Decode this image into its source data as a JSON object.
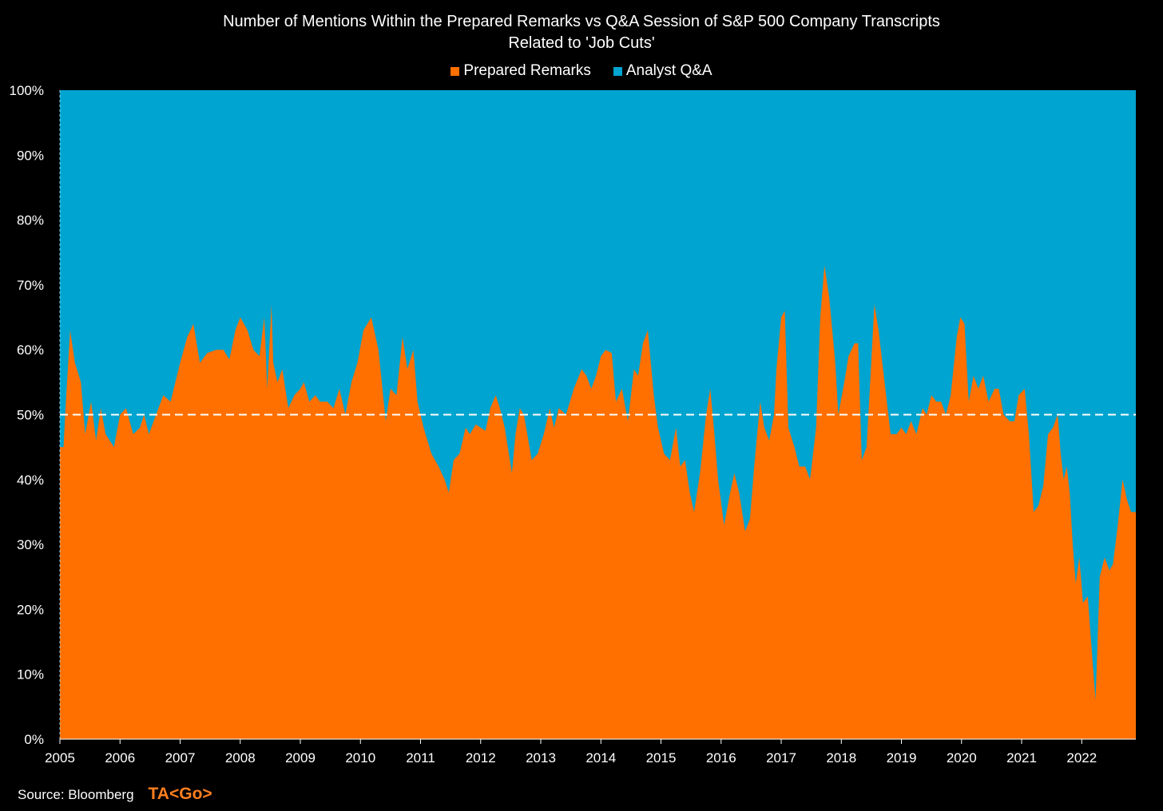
{
  "chart_data": {
    "type": "area",
    "stacked": "percent",
    "title_lines": [
      "Number of Mentions Within the Prepared Remarks vs Q&A Session of S&P 500 Company Transcripts",
      "Related to 'Job Cuts'"
    ],
    "legend": {
      "placement": "top-center"
    },
    "series": [
      {
        "name": "Prepared Remarks",
        "color": "#ff7000"
      },
      {
        "name": "Analyst Q&A",
        "color": "#00a4d0"
      }
    ],
    "x_ticks": [
      "2005",
      "2006",
      "2007",
      "2008",
      "2009",
      "2010",
      "2011",
      "2012",
      "2013",
      "2014",
      "2015",
      "2016",
      "2017",
      "2018",
      "2019",
      "2020",
      "2021",
      "2022"
    ],
    "y_ticks": [
      "0%",
      "10%",
      "20%",
      "30%",
      "40%",
      "50%",
      "60%",
      "70%",
      "80%",
      "90%",
      "100%"
    ],
    "xlim": [
      2005,
      2022.9
    ],
    "ylim": [
      0,
      100
    ],
    "reference_line": {
      "y": 50,
      "style": "dashed",
      "color": "#ffffff"
    },
    "prepared_remarks_pct": [
      [
        2005.0,
        45
      ],
      [
        2005.06,
        45
      ],
      [
        2005.1,
        52
      ],
      [
        2005.17,
        63
      ],
      [
        2005.25,
        58
      ],
      [
        2005.35,
        55
      ],
      [
        2005.42,
        47
      ],
      [
        2005.52,
        52
      ],
      [
        2005.6,
        46
      ],
      [
        2005.68,
        51
      ],
      [
        2005.76,
        47
      ],
      [
        2005.9,
        45
      ],
      [
        2006.0,
        50
      ],
      [
        2006.1,
        51
      ],
      [
        2006.22,
        47
      ],
      [
        2006.33,
        48
      ],
      [
        2006.4,
        50
      ],
      [
        2006.48,
        47
      ],
      [
        2006.6,
        50
      ],
      [
        2006.72,
        53
      ],
      [
        2006.84,
        52
      ],
      [
        2007.0,
        58
      ],
      [
        2007.12,
        62
      ],
      [
        2007.22,
        64
      ],
      [
        2007.33,
        58
      ],
      [
        2007.45,
        59.5
      ],
      [
        2007.6,
        60
      ],
      [
        2007.72,
        60
      ],
      [
        2007.82,
        58.5
      ],
      [
        2007.92,
        63
      ],
      [
        2008.0,
        65
      ],
      [
        2008.12,
        63
      ],
      [
        2008.22,
        60
      ],
      [
        2008.32,
        59
      ],
      [
        2008.4,
        65
      ],
      [
        2008.45,
        54
      ],
      [
        2008.52,
        67
      ],
      [
        2008.55,
        58
      ],
      [
        2008.62,
        55
      ],
      [
        2008.7,
        57
      ],
      [
        2008.8,
        51
      ],
      [
        2008.9,
        53
      ],
      [
        2009.0,
        54
      ],
      [
        2009.06,
        55
      ],
      [
        2009.15,
        52
      ],
      [
        2009.25,
        53
      ],
      [
        2009.33,
        52
      ],
      [
        2009.45,
        52
      ],
      [
        2009.55,
        51
      ],
      [
        2009.65,
        54
      ],
      [
        2009.75,
        50
      ],
      [
        2009.85,
        55
      ],
      [
        2009.95,
        58
      ],
      [
        2010.05,
        63
      ],
      [
        2010.18,
        65
      ],
      [
        2010.3,
        60
      ],
      [
        2010.42,
        49
      ],
      [
        2010.5,
        54
      ],
      [
        2010.6,
        53
      ],
      [
        2010.7,
        62
      ],
      [
        2010.78,
        57
      ],
      [
        2010.88,
        60
      ],
      [
        2010.95,
        52
      ],
      [
        2011.05,
        48
      ],
      [
        2011.18,
        44
      ],
      [
        2011.3,
        42
      ],
      [
        2011.4,
        40
      ],
      [
        2011.47,
        38
      ],
      [
        2011.55,
        43
      ],
      [
        2011.65,
        44
      ],
      [
        2011.75,
        48
      ],
      [
        2011.82,
        47
      ],
      [
        2011.92,
        48.5
      ],
      [
        2012.0,
        48
      ],
      [
        2012.08,
        47.5
      ],
      [
        2012.16,
        51
      ],
      [
        2012.25,
        53
      ],
      [
        2012.32,
        51
      ],
      [
        2012.4,
        48
      ],
      [
        2012.52,
        41
      ],
      [
        2012.58,
        47
      ],
      [
        2012.65,
        51
      ],
      [
        2012.72,
        50
      ],
      [
        2012.85,
        43
      ],
      [
        2012.95,
        44
      ],
      [
        2013.05,
        47
      ],
      [
        2013.15,
        51
      ],
      [
        2013.22,
        48
      ],
      [
        2013.3,
        51
      ],
      [
        2013.42,
        50
      ],
      [
        2013.55,
        54
      ],
      [
        2013.68,
        57
      ],
      [
        2013.76,
        56
      ],
      [
        2013.84,
        54
      ],
      [
        2013.92,
        56
      ],
      [
        2014.0,
        59
      ],
      [
        2014.08,
        60
      ],
      [
        2014.18,
        59.5
      ],
      [
        2014.25,
        52
      ],
      [
        2014.35,
        54
      ],
      [
        2014.45,
        49
      ],
      [
        2014.55,
        57
      ],
      [
        2014.62,
        56
      ],
      [
        2014.7,
        61
      ],
      [
        2014.78,
        63
      ],
      [
        2014.88,
        53
      ],
      [
        2014.95,
        48
      ],
      [
        2015.05,
        44
      ],
      [
        2015.15,
        43
      ],
      [
        2015.25,
        48
      ],
      [
        2015.32,
        42
      ],
      [
        2015.4,
        43
      ],
      [
        2015.48,
        38
      ],
      [
        2015.55,
        35
      ],
      [
        2015.65,
        41
      ],
      [
        2015.75,
        50
      ],
      [
        2015.82,
        54
      ],
      [
        2015.88,
        48
      ],
      [
        2015.95,
        40
      ],
      [
        2016.05,
        33
      ],
      [
        2016.15,
        38
      ],
      [
        2016.22,
        41
      ],
      [
        2016.3,
        38
      ],
      [
        2016.4,
        32
      ],
      [
        2016.48,
        34
      ],
      [
        2016.55,
        42
      ],
      [
        2016.65,
        52
      ],
      [
        2016.72,
        48
      ],
      [
        2016.8,
        46
      ],
      [
        2016.88,
        50
      ],
      [
        2016.92,
        57
      ],
      [
        2017.0,
        65
      ],
      [
        2017.06,
        66
      ],
      [
        2017.12,
        48
      ],
      [
        2017.22,
        45
      ],
      [
        2017.3,
        42
      ],
      [
        2017.4,
        42
      ],
      [
        2017.48,
        40
      ],
      [
        2017.58,
        48
      ],
      [
        2017.65,
        65
      ],
      [
        2017.72,
        73
      ],
      [
        2017.8,
        68
      ],
      [
        2017.9,
        58
      ],
      [
        2017.95,
        50
      ],
      [
        2018.05,
        55
      ],
      [
        2018.12,
        59
      ],
      [
        2018.22,
        61
      ],
      [
        2018.28,
        61
      ],
      [
        2018.34,
        43
      ],
      [
        2018.42,
        45
      ],
      [
        2018.48,
        55
      ],
      [
        2018.55,
        67
      ],
      [
        2018.62,
        63
      ],
      [
        2018.72,
        55
      ],
      [
        2018.82,
        47
      ],
      [
        2018.92,
        47
      ],
      [
        2019.0,
        48
      ],
      [
        2019.08,
        47
      ],
      [
        2019.16,
        49
      ],
      [
        2019.25,
        47
      ],
      [
        2019.35,
        51
      ],
      [
        2019.42,
        50
      ],
      [
        2019.5,
        53
      ],
      [
        2019.58,
        52
      ],
      [
        2019.66,
        52
      ],
      [
        2019.74,
        50
      ],
      [
        2019.82,
        53
      ],
      [
        2019.92,
        62
      ],
      [
        2019.98,
        65
      ],
      [
        2020.05,
        64
      ],
      [
        2020.12,
        52
      ],
      [
        2020.2,
        56
      ],
      [
        2020.28,
        54
      ],
      [
        2020.36,
        56
      ],
      [
        2020.45,
        52
      ],
      [
        2020.55,
        54
      ],
      [
        2020.62,
        54
      ],
      [
        2020.7,
        50
      ],
      [
        2020.8,
        49
      ],
      [
        2020.88,
        49
      ],
      [
        2020.95,
        53
      ],
      [
        2021.05,
        54
      ],
      [
        2021.12,
        47
      ],
      [
        2021.2,
        35
      ],
      [
        2021.28,
        36
      ],
      [
        2021.36,
        39
      ],
      [
        2021.44,
        47
      ],
      [
        2021.52,
        48
      ],
      [
        2021.6,
        50
      ],
      [
        2021.65,
        44
      ],
      [
        2021.7,
        40
      ],
      [
        2021.75,
        42
      ],
      [
        2021.8,
        38
      ],
      [
        2021.85,
        30
      ],
      [
        2021.9,
        24
      ],
      [
        2021.96,
        28
      ],
      [
        2022.02,
        21
      ],
      [
        2022.1,
        22
      ],
      [
        2022.18,
        12
      ],
      [
        2022.23,
        6
      ],
      [
        2022.3,
        25
      ],
      [
        2022.38,
        28
      ],
      [
        2022.46,
        26
      ],
      [
        2022.52,
        27
      ],
      [
        2022.6,
        33
      ],
      [
        2022.68,
        40
      ],
      [
        2022.75,
        37
      ],
      [
        2022.82,
        35
      ],
      [
        2022.9,
        35
      ]
    ]
  },
  "footer": {
    "source": "Source: Bloomberg",
    "brand": "TA<Go>"
  }
}
